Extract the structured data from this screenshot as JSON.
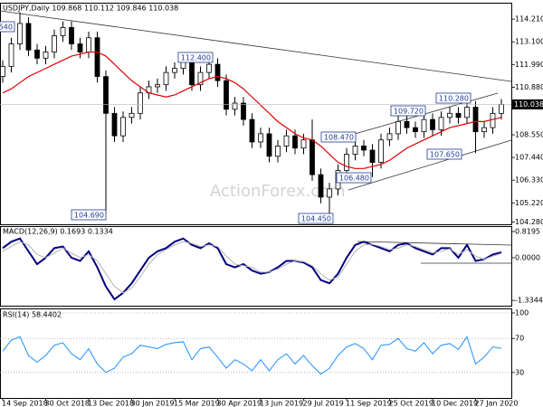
{
  "chart_data": [
    {
      "type": "candlestick",
      "title": "USDJPY,Daily 109.868 110.112 109.846 110.038",
      "watermark": "ActionForex.com",
      "categories": [
        "14 Sep 2018",
        null,
        null,
        null,
        null,
        "30 Oct 2018",
        null,
        null,
        null,
        null,
        "13 Dec 2018",
        null,
        null,
        null,
        null,
        "30 Jan 2019",
        null,
        null,
        null,
        null,
        "15 Mar 2019",
        null,
        null,
        null,
        null,
        "30 Apr 2019",
        null,
        null,
        null,
        null,
        "13 Jun 2019",
        null,
        null,
        null,
        null,
        "29 Jul 2019",
        null,
        null,
        null,
        null,
        "11 Sep 2019",
        null,
        null,
        null,
        null,
        "25 Oct 2019",
        null,
        null,
        null,
        null,
        "10 Dec 2019",
        null,
        null,
        null,
        null,
        "27 Jan 2020",
        null,
        null,
        null
      ],
      "open": [
        111.4,
        111.9,
        113.0,
        114.0,
        112.7,
        112.3,
        112.6,
        113.4,
        113.8,
        113.0,
        112.6,
        113.3,
        111.4,
        109.6,
        108.5,
        109.4,
        109.6,
        110.6,
        110.9,
        111.0,
        111.6,
        111.8,
        112.2,
        111.0,
        111.6,
        112.0,
        111.2,
        109.8,
        110.1,
        109.3,
        108.2,
        108.6,
        107.5,
        108.0,
        108.5,
        107.9,
        108.3,
        106.6,
        105.5,
        105.9,
        106.8,
        107.6,
        108.0,
        107.8,
        107.2,
        108.3,
        108.6,
        109.2,
        108.9,
        108.7,
        109.3,
        108.8,
        109.4,
        109.6,
        109.4,
        109.9,
        108.7,
        108.9,
        109.6
      ],
      "high": [
        112.2,
        113.3,
        114.55,
        114.3,
        113.0,
        112.9,
        113.7,
        114.1,
        114.1,
        113.3,
        113.6,
        113.6,
        111.7,
        109.9,
        109.7,
        109.9,
        110.9,
        111.2,
        111.3,
        111.9,
        112.1,
        112.4,
        112.5,
        111.9,
        112.3,
        112.3,
        111.5,
        110.4,
        110.4,
        109.6,
        108.9,
        108.9,
        108.3,
        108.8,
        108.8,
        108.6,
        109.3,
        106.9,
        106.2,
        107.1,
        107.9,
        108.47,
        108.3,
        108.1,
        108.6,
        108.9,
        109.72,
        109.5,
        109.2,
        109.6,
        109.6,
        109.7,
        109.9,
        109.9,
        110.28,
        110.2,
        109.2,
        109.9,
        110.3
      ],
      "low": [
        111.1,
        111.6,
        112.7,
        112.4,
        112.0,
        112.0,
        112.3,
        113.1,
        112.7,
        112.3,
        112.3,
        111.1,
        104.69,
        108.2,
        108.2,
        109.1,
        109.3,
        110.3,
        110.6,
        110.7,
        111.3,
        111.5,
        110.7,
        110.7,
        111.3,
        110.9,
        109.5,
        109.5,
        109.0,
        107.9,
        107.9,
        107.2,
        107.2,
        107.7,
        107.6,
        107.6,
        106.3,
        105.2,
        104.45,
        105.6,
        106.5,
        107.3,
        107.5,
        106.48,
        106.9,
        108.0,
        108.3,
        108.6,
        108.4,
        108.4,
        108.5,
        108.5,
        109.1,
        109.1,
        109.1,
        107.65,
        108.4,
        108.6,
        109.3
      ],
      "close": [
        111.9,
        113.0,
        114.0,
        112.7,
        112.3,
        112.6,
        113.4,
        113.8,
        113.0,
        112.6,
        113.3,
        111.4,
        109.6,
        108.5,
        109.4,
        109.6,
        110.6,
        110.9,
        111.0,
        111.6,
        111.8,
        112.2,
        111.0,
        111.6,
        112.0,
        111.2,
        109.8,
        110.1,
        109.3,
        108.2,
        108.6,
        107.5,
        108.0,
        108.5,
        107.9,
        108.3,
        106.6,
        105.5,
        105.9,
        106.8,
        107.6,
        108.0,
        107.8,
        107.2,
        108.3,
        108.6,
        109.2,
        108.9,
        108.7,
        109.3,
        108.8,
        109.4,
        109.6,
        109.4,
        109.9,
        108.7,
        108.9,
        109.6,
        110.038
      ],
      "color": "#000000",
      "overlay": {
        "color": "#e00000",
        "values": [
          110.6,
          110.8,
          111.1,
          111.4,
          111.6,
          111.8,
          112.0,
          112.2,
          112.4,
          112.5,
          112.6,
          112.6,
          112.4,
          112.0,
          111.6,
          111.2,
          110.9,
          110.6,
          110.5,
          110.4,
          110.5,
          110.7,
          110.9,
          111.1,
          111.3,
          111.4,
          111.3,
          111.1,
          110.8,
          110.4,
          110.0,
          109.6,
          109.2,
          108.9,
          108.6,
          108.4,
          108.3,
          108.0,
          107.6,
          107.2,
          107.0,
          106.9,
          106.9,
          107.0,
          107.1,
          107.3,
          107.6,
          107.9,
          108.1,
          108.3,
          108.5,
          108.7,
          108.9,
          109.0,
          109.1,
          109.2,
          109.2,
          109.3,
          109.4
        ]
      },
      "annotations": [
        "540",
        "104.690",
        "112.400",
        "108.470",
        "109.720",
        "110.280",
        "106.480",
        "107.650",
        "104.450"
      ],
      "last_label": "110.038",
      "ylim": [
        104.17,
        114.97
      ],
      "yticks": [
        {
          "value": 114.21,
          "label": "114.210"
        },
        {
          "value": 113.1,
          "label": "113.100"
        },
        {
          "value": 111.99,
          "label": "111.990"
        },
        {
          "value": 110.88,
          "label": "110.880"
        },
        {
          "value": 108.55,
          "label": "108.550"
        },
        {
          "value": 107.44,
          "label": "107.440"
        },
        {
          "value": 106.33,
          "label": "106.330"
        },
        {
          "value": 105.22,
          "label": "105.220"
        },
        {
          "value": 104.28,
          "label": "104.280"
        }
      ]
    },
    {
      "type": "line",
      "title": "MACD(12,26,9) 0.1693 0.1334",
      "series": [
        {
          "color": "#000080",
          "values": [
            0.3,
            0.5,
            0.6,
            0.2,
            -0.2,
            0.0,
            0.3,
            0.35,
            0.0,
            -0.1,
            0.2,
            -0.3,
            -0.9,
            -1.3,
            -1.1,
            -0.8,
            -0.4,
            0.0,
            0.2,
            0.3,
            0.5,
            0.6,
            0.4,
            0.3,
            0.45,
            0.3,
            -0.2,
            -0.3,
            -0.2,
            -0.4,
            -0.5,
            -0.45,
            -0.3,
            -0.1,
            -0.1,
            -0.15,
            -0.3,
            -0.7,
            -0.8,
            -0.5,
            0.0,
            0.4,
            0.5,
            0.4,
            0.3,
            0.2,
            0.4,
            0.45,
            0.3,
            0.2,
            0.1,
            0.3,
            0.3,
            0.0,
            0.4,
            -0.1,
            -0.05,
            0.1,
            0.1693
          ]
        },
        {
          "color": "#b4b4b4",
          "values": [
            0.2,
            0.35,
            0.5,
            0.4,
            0.1,
            0.0,
            0.15,
            0.3,
            0.15,
            0.0,
            0.1,
            -0.1,
            -0.5,
            -0.9,
            -1.1,
            -0.95,
            -0.6,
            -0.2,
            0.1,
            0.25,
            0.4,
            0.5,
            0.45,
            0.35,
            0.4,
            0.35,
            0.05,
            -0.2,
            -0.25,
            -0.3,
            -0.45,
            -0.45,
            -0.35,
            -0.2,
            -0.1,
            -0.12,
            -0.25,
            -0.5,
            -0.7,
            -0.6,
            -0.2,
            0.2,
            0.4,
            0.42,
            0.35,
            0.25,
            0.3,
            0.4,
            0.35,
            0.25,
            0.15,
            0.2,
            0.28,
            0.1,
            0.25,
            0.05,
            -0.05,
            0.05,
            0.1334
          ]
        }
      ],
      "ylim": [
        -1.5,
        0.96
      ],
      "yticks": [
        0.8195,
        {
          "value": 0,
          "label": "0.0000"
        },
        -1.3344
      ]
    },
    {
      "type": "line",
      "title": "RSI(14) 58.4402",
      "series": [
        {
          "color": "#1e90ff",
          "values": [
            55,
            68,
            72,
            50,
            42,
            50,
            62,
            65,
            52,
            45,
            58,
            40,
            30,
            35,
            48,
            52,
            62,
            60,
            58,
            63,
            65,
            66,
            45,
            58,
            60,
            48,
            35,
            45,
            40,
            32,
            45,
            32,
            45,
            52,
            40,
            50,
            38,
            28,
            35,
            50,
            60,
            64,
            58,
            45,
            62,
            63,
            70,
            58,
            55,
            65,
            52,
            62,
            64,
            57,
            72,
            40,
            48,
            60,
            58.4402
          ]
        }
      ],
      "ylim": [
        0,
        100
      ],
      "yticks": [
        100,
        70,
        30
      ],
      "grid": true
    }
  ]
}
